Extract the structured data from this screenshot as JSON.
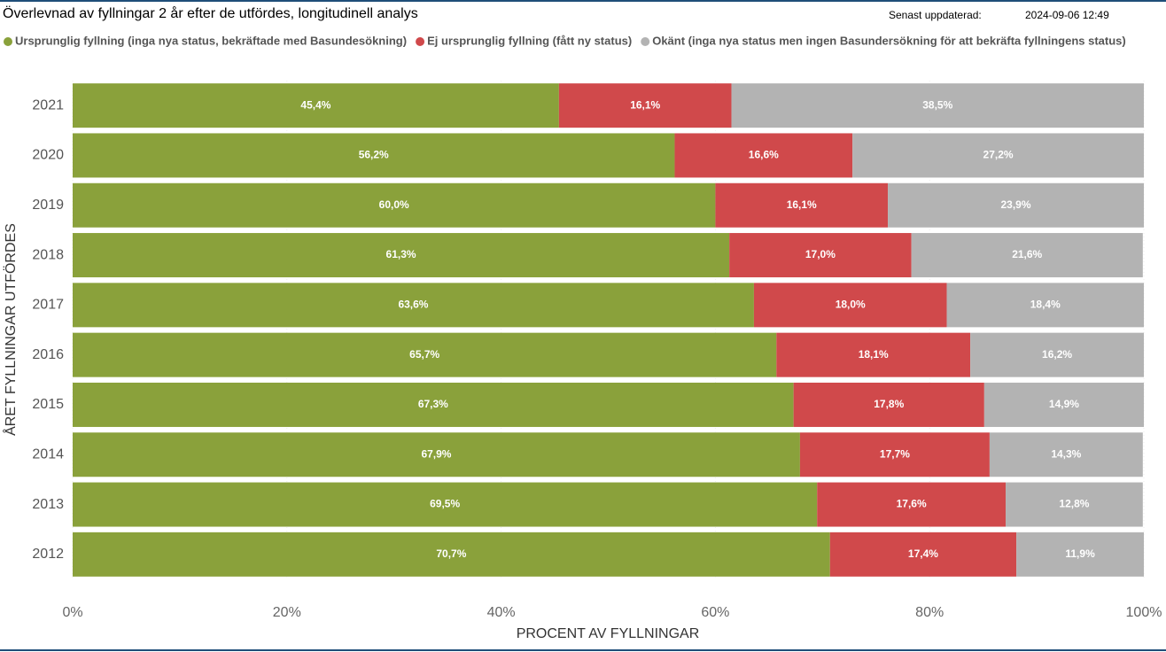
{
  "chart_data": {
    "type": "stacked-bar-horizontal",
    "title": "Överlevnad av fyllningar 2 år efter de utfördes, longitudinell analys",
    "updated_label": "Senast uppdaterad:",
    "updated_value": "2024-09-06 12:49",
    "x_label": "PROCENT AV FYLLNINGAR",
    "y_label": "ÅRET FYLLNINGAR UTFÖRDES",
    "categories": [
      "2021",
      "2020",
      "2019",
      "2018",
      "2017",
      "2016",
      "2015",
      "2014",
      "2013",
      "2012"
    ],
    "series": [
      {
        "name": "Ursprunglig fyllning (inga nya status, bekräftade med Basundesökning)",
        "color": "#8aa13b",
        "values": [
          45.4,
          56.2,
          60.0,
          61.3,
          63.6,
          65.7,
          67.3,
          67.9,
          69.5,
          70.7
        ],
        "value_labels": [
          "45,4%",
          "56,2%",
          "60,0%",
          "61,3%",
          "63,6%",
          "65,7%",
          "67,3%",
          "67,9%",
          "69,5%",
          "70,7%"
        ]
      },
      {
        "name": "Ej ursprunglig fyllning (fått ny status)",
        "color": "#d0494b",
        "values": [
          16.1,
          16.6,
          16.1,
          17.0,
          18.0,
          18.1,
          17.8,
          17.7,
          17.6,
          17.4
        ],
        "value_labels": [
          "16,1%",
          "16,6%",
          "16,1%",
          "17,0%",
          "18,0%",
          "18,1%",
          "17,8%",
          "17,7%",
          "17,6%",
          "17,4%"
        ]
      },
      {
        "name": "Okänt (inga nya status men ingen Basundersökning för att bekräfta fyllningens status)",
        "color": "#b3b3b3",
        "values": [
          38.5,
          27.2,
          23.9,
          21.6,
          18.4,
          16.2,
          14.9,
          14.3,
          12.8,
          11.9
        ],
        "value_labels": [
          "38,5%",
          "27,2%",
          "23,9%",
          "21,6%",
          "18,4%",
          "16,2%",
          "14,9%",
          "14,3%",
          "12,8%",
          "11,9%"
        ]
      }
    ],
    "xlim": [
      0,
      100
    ],
    "xticks": [
      {
        "value": 0,
        "label": "0%"
      },
      {
        "value": 20,
        "label": "20%"
      },
      {
        "value": 40,
        "label": "40%"
      },
      {
        "value": 60,
        "label": "60%"
      },
      {
        "value": 80,
        "label": "80%"
      },
      {
        "value": 100,
        "label": "100%"
      }
    ]
  }
}
